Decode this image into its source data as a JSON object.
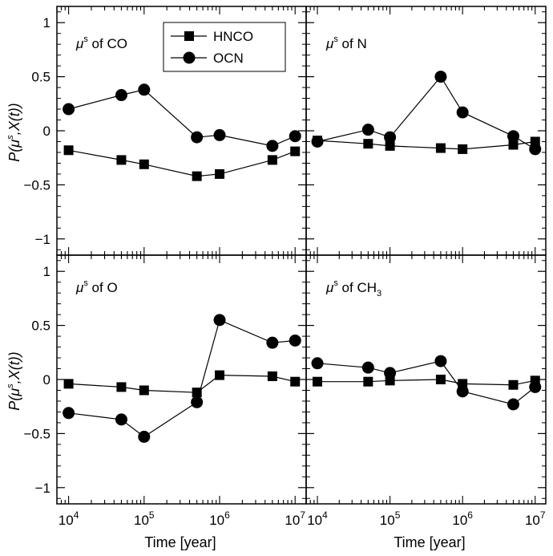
{
  "chart_data": {
    "type": "line",
    "layout": "2x2 shared axes",
    "x_scale": "log",
    "xlim": [
      7000,
      14000000
    ],
    "ylim": [
      -1.15,
      1.15
    ],
    "x_tick_labels": [
      {
        "base": "10",
        "exp": "4",
        "value": 10000
      },
      {
        "base": "10",
        "exp": "5",
        "value": 100000
      },
      {
        "base": "10",
        "exp": "6",
        "value": 1000000
      },
      {
        "base": "10",
        "exp": "7",
        "value": 10000000
      }
    ],
    "y_tick_labels": [
      {
        "label": "1",
        "value": 1
      },
      {
        "label": "0.5",
        "value": 0.5
      },
      {
        "label": "0",
        "value": 0
      },
      {
        "label": "−0.5",
        "value": -0.5
      },
      {
        "label": "−1",
        "value": -1
      }
    ],
    "xlabel": "Time [year]",
    "ylabel": {
      "p": "P(",
      "mu": "μ",
      "s": "s",
      "rest": ",X(t))"
    },
    "legend": {
      "position": "top of top-left panel",
      "entries": [
        {
          "label": "HNCO",
          "marker": "square"
        },
        {
          "label": "OCN",
          "marker": "circle"
        }
      ]
    },
    "series_colors": {
      "HNCO": "#000000",
      "OCN": "#000000"
    },
    "panels": [
      {
        "title": {
          "mu": "μ",
          "sup": "s",
          "text": " of CO",
          "sub": ""
        },
        "x": [
          10000,
          50000,
          100000,
          500000,
          1000000,
          5000000,
          10000000
        ],
        "series": [
          {
            "name": "HNCO",
            "marker": "square",
            "values": [
              -0.18,
              -0.27,
              -0.31,
              -0.42,
              -0.4,
              -0.27,
              -0.19
            ]
          },
          {
            "name": "OCN",
            "marker": "circle",
            "values": [
              0.2,
              0.33,
              0.38,
              -0.06,
              -0.04,
              -0.14,
              -0.05
            ]
          }
        ]
      },
      {
        "title": {
          "mu": "μ",
          "sup": "s",
          "text": " of N",
          "sub": ""
        },
        "x": [
          10000,
          50000,
          100000,
          500000,
          1000000,
          5000000,
          10000000
        ],
        "series": [
          {
            "name": "HNCO",
            "marker": "square",
            "values": [
              -0.09,
              -0.12,
              -0.14,
              -0.16,
              -0.17,
              -0.13,
              -0.1
            ]
          },
          {
            "name": "OCN",
            "marker": "circle",
            "values": [
              -0.1,
              0.01,
              -0.06,
              0.5,
              0.17,
              -0.05,
              -0.17
            ]
          }
        ]
      },
      {
        "title": {
          "mu": "μ",
          "sup": "s",
          "text": " of O",
          "sub": ""
        },
        "x": [
          10000,
          50000,
          100000,
          500000,
          1000000,
          5000000,
          10000000
        ],
        "series": [
          {
            "name": "HNCO",
            "marker": "square",
            "values": [
              -0.04,
              -0.07,
              -0.1,
              -0.12,
              0.04,
              0.03,
              -0.02
            ]
          },
          {
            "name": "OCN",
            "marker": "circle",
            "values": [
              -0.31,
              -0.37,
              -0.53,
              -0.21,
              0.55,
              0.34,
              0.36
            ]
          }
        ]
      },
      {
        "title": {
          "mu": "μ",
          "sup": "s",
          "text": " of  CH",
          "sub": "3"
        },
        "x": [
          10000,
          50000,
          100000,
          500000,
          1000000,
          5000000,
          10000000
        ],
        "series": [
          {
            "name": "HNCO",
            "marker": "square",
            "values": [
              -0.02,
              -0.02,
              -0.01,
              0.0,
              -0.04,
              -0.05,
              -0.01
            ]
          },
          {
            "name": "OCN",
            "marker": "circle",
            "values": [
              0.15,
              0.11,
              0.06,
              0.17,
              -0.11,
              -0.23,
              -0.07
            ]
          }
        ]
      }
    ]
  }
}
